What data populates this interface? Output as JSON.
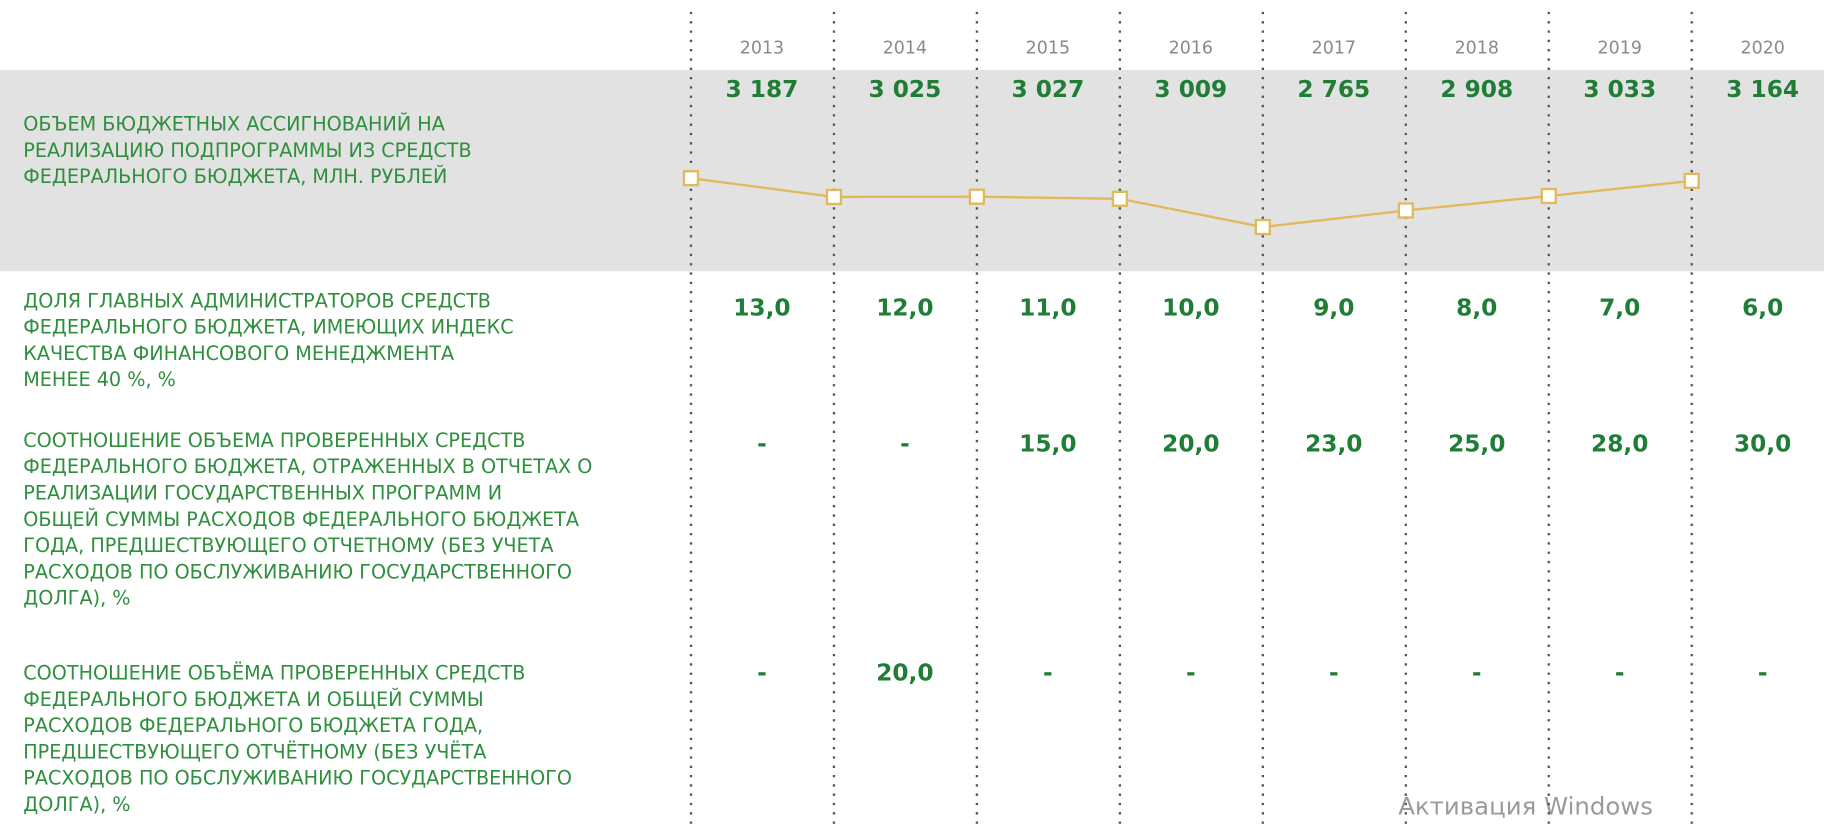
{
  "header": {
    "years": [
      "2013",
      "2014",
      "2015",
      "2016",
      "2017",
      "2018",
      "2019",
      "2020"
    ]
  },
  "rows": [
    {
      "label": [
        "ОБЪЕМ БЮДЖЕТНЫХ АССИГНОВАНИЙ НА",
        "РЕАЛИЗАЦИЮ ПОДПРОГРАММЫ ИЗ СРЕДСТВ",
        "ФЕДЕРАЛЬНОГО БЮДЖЕТА, МЛН. РУБЛЕЙ"
      ],
      "cells": [
        "3 187",
        "3 025",
        "3 027",
        "3 009",
        "2 765",
        "2 908",
        "3 033",
        "3 164"
      ],
      "sparkline": {
        "type": "line",
        "values": [
          3187,
          3025,
          3027,
          3009,
          2765,
          2908,
          3033,
          3164
        ],
        "color": "#e2b85c"
      }
    },
    {
      "label": [
        "ДОЛЯ ГЛАВНЫХ АДМИНИСТРАТОРОВ СРЕДСТВ",
        "ФЕДЕРАЛЬНОГО БЮДЖЕТА, ИМЕЮЩИХ ИНДЕКС",
        "КАЧЕСТВА ФИНАНСОВОГО МЕНЕДЖМЕНТА",
        "МЕНЕЕ 40 %, %"
      ],
      "cells": [
        "13,0",
        "12,0",
        "11,0",
        "10,0",
        "9,0",
        "8,0",
        "7,0",
        "6,0"
      ]
    },
    {
      "label": [
        "СООТНОШЕНИЕ ОБЪЕМА ПРОВЕРЕННЫХ СРЕДСТВ",
        "ФЕДЕРАЛЬНОГО БЮДЖЕТА, ОТРАЖЕННЫХ В ОТЧЕТАХ О",
        "РЕАЛИЗАЦИИ ГОСУДАРСТВЕННЫХ ПРОГРАММ И",
        "ОБЩЕЙ СУММЫ РАСХОДОВ ФЕДЕРАЛЬНОГО БЮДЖЕТА",
        "ГОДА, ПРЕДШЕСТВУЮЩЕГО ОТЧЕТНОМУ (БЕЗ УЧЕТА",
        "РАСХОДОВ ПО ОБСЛУЖИВАНИЮ ГОСУДАРСТВЕННОГО",
        "ДОЛГА), %"
      ],
      "cells": [
        "-",
        "-",
        "15,0",
        "20,0",
        "23,0",
        "25,0",
        "28,0",
        "30,0"
      ]
    },
    {
      "label": [
        "СООТНОШЕНИЕ ОБЪЁМА ПРОВЕРЕННЫХ СРЕДСТВ",
        "ФЕДЕРАЛЬНОГО БЮДЖЕТА И ОБЩЕЙ СУММЫ",
        "РАСХОДОВ ФЕДЕРАЛЬНОГО БЮДЖЕТА ГОДА,",
        "ПРЕДШЕСТВУЮЩЕГО ОТЧЁТНОМУ (БЕЗ УЧЁТА",
        "РАСХОДОВ ПО ОБСЛУЖИВАНИЮ ГОСУДАРСТВЕННОГО",
        "ДОЛГА), %"
      ],
      "cells": [
        "-",
        "20,0",
        "-",
        "-",
        "-",
        "-",
        "-",
        "-"
      ]
    }
  ],
  "watermark": "Активация Windows"
}
